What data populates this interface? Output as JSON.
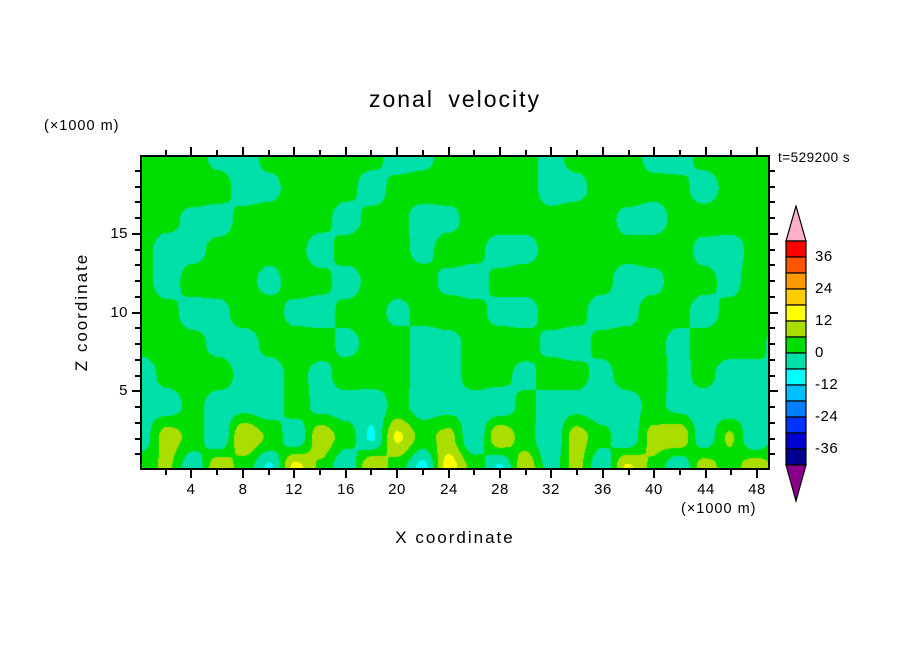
{
  "title": "zonal velocity",
  "time_label": "t=529200 s",
  "axes": {
    "x": {
      "label": "X coordinate",
      "unit": "(×1000 m)",
      "min": 0,
      "max": 49,
      "minor_step": 2,
      "labeled_values": [
        4,
        8,
        12,
        16,
        20,
        24,
        28,
        32,
        36,
        40,
        44,
        48
      ]
    },
    "z": {
      "label": "Z coordinate",
      "unit": "(×1000 m)",
      "min": 0,
      "max": 20,
      "minor_step": 1,
      "labeled_values": [
        5,
        10,
        15
      ]
    }
  },
  "colorbar": {
    "boundaries": [
      -42,
      -36,
      -30,
      -24,
      -18,
      -12,
      -6,
      0,
      6,
      12,
      18,
      24,
      30,
      36,
      42
    ],
    "colors": [
      "#8b008b",
      "#000090",
      "#0000d0",
      "#0033ff",
      "#0080ff",
      "#00c0ff",
      "#00ffff",
      "#00e0a8",
      "#00dd00",
      "#aadd00",
      "#ffff00",
      "#ffcc00",
      "#ff9900",
      "#ff5500",
      "#ff0000",
      "#ffb0c8"
    ],
    "labeled_values": [
      36,
      24,
      12,
      0,
      -12,
      -24,
      -36
    ]
  },
  "chart_data": {
    "type": "heatmap",
    "title": "zonal velocity",
    "xlabel": "X coordinate (×1000 m)",
    "ylabel": "Z coordinate (×1000 m)",
    "time_annotation": "t=529200 s",
    "xlim": [
      0,
      49
    ],
    "ylim": [
      0,
      20
    ],
    "levels": [
      -42,
      -36,
      -30,
      -24,
      -18,
      -12,
      -6,
      0,
      6,
      12,
      18,
      24,
      30,
      36,
      42
    ],
    "legend_position": "right-colorbar",
    "grid": false,
    "x": [
      0,
      2,
      4,
      6,
      8,
      10,
      12,
      14,
      16,
      18,
      20,
      22,
      24,
      26,
      28,
      30,
      32,
      34,
      36,
      38,
      40,
      42,
      44,
      46,
      48,
      50
    ],
    "z": [
      0,
      2,
      4,
      6,
      8,
      10,
      12,
      14,
      16,
      18,
      20
    ],
    "values": [
      [
        4,
        7,
        -5,
        11,
        3,
        -7,
        14,
        5,
        -6,
        12,
        3,
        -8,
        15,
        4,
        -7,
        10,
        -3,
        8,
        -5,
        13,
        5,
        -6,
        9,
        3,
        10,
        4
      ],
      [
        -3,
        9,
        4,
        -6,
        12,
        5,
        -5,
        10,
        3,
        -7,
        13,
        4,
        8,
        -6,
        11,
        3,
        -6,
        9,
        2,
        -5,
        8,
        11,
        -4,
        7,
        -6,
        4
      ],
      [
        -2,
        -3,
        2,
        -3,
        -2,
        -4,
        3,
        -2,
        -3,
        -4,
        2,
        -3,
        -2,
        -3,
        -4,
        2,
        -3,
        -2,
        -4,
        -3,
        2,
        -2,
        -3,
        -4,
        -2,
        -3
      ],
      [
        -3,
        2,
        3,
        3,
        -2,
        -3,
        2,
        -2,
        3,
        3,
        2,
        -2,
        -3,
        3,
        2,
        -2,
        3,
        2,
        -2,
        3,
        3,
        -2,
        2,
        -3,
        -2,
        2
      ],
      [
        2,
        3,
        2,
        -2,
        -3,
        2,
        3,
        3,
        -2,
        2,
        3,
        -3,
        -2,
        2,
        3,
        3,
        -2,
        -3,
        2,
        3,
        2,
        -2,
        3,
        3,
        2,
        -3
      ],
      [
        3,
        2,
        -3,
        -2,
        3,
        3,
        -2,
        -3,
        2,
        3,
        -2,
        2,
        3,
        2,
        -2,
        -3,
        3,
        2,
        -3,
        -2,
        3,
        2,
        -3,
        2,
        2,
        2
      ],
      [
        2,
        -3,
        3,
        3,
        2,
        -2,
        3,
        2,
        -3,
        2,
        3,
        3,
        -2,
        -3,
        2,
        3,
        3,
        2,
        2,
        -3,
        -2,
        3,
        2,
        -2,
        3,
        2
      ],
      [
        2,
        -3,
        -2,
        2,
        3,
        2,
        2,
        -3,
        3,
        3,
        2,
        -2,
        3,
        2,
        -3,
        -2,
        2,
        3,
        2,
        2,
        3,
        3,
        -2,
        -3,
        2,
        3
      ],
      [
        3,
        2,
        -2,
        -3,
        2,
        3,
        3,
        2,
        -3,
        2,
        2,
        -3,
        -2,
        3,
        3,
        2,
        2,
        3,
        3,
        -2,
        -3,
        2,
        3,
        3,
        2,
        2
      ],
      [
        3,
        2,
        4,
        3,
        -3,
        -2,
        3,
        3,
        2,
        -3,
        2,
        3,
        3,
        2,
        2,
        3,
        -3,
        -2,
        3,
        4,
        2,
        2,
        -3,
        2,
        3,
        2
      ],
      [
        2,
        3,
        3,
        -2,
        -3,
        2,
        4,
        3,
        2,
        2,
        -3,
        -2,
        3,
        4,
        2,
        2,
        -2,
        2,
        3,
        3,
        -2,
        -3,
        2,
        3,
        2,
        2
      ]
    ]
  }
}
